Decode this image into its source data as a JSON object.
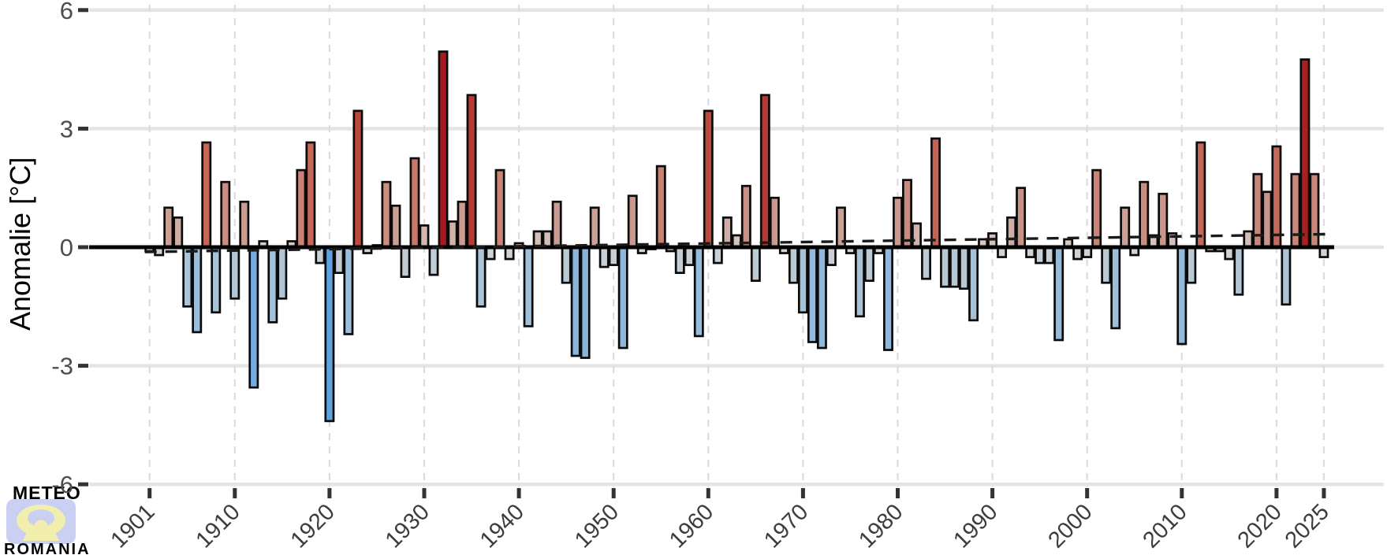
{
  "chart_data": {
    "type": "bar",
    "title": "",
    "xlabel": "",
    "ylabel": "Anomalie [°C]",
    "start_year": 1901,
    "end_year": 2025,
    "values": [
      -0.1,
      -0.2,
      1.0,
      0.75,
      -1.5,
      -2.15,
      2.65,
      -1.65,
      1.65,
      -1.3,
      1.15,
      -3.55,
      0.15,
      -1.9,
      -1.3,
      0.15,
      1.95,
      2.65,
      -0.4,
      -4.4,
      -0.65,
      -2.2,
      3.45,
      -0.15,
      0.05,
      1.65,
      1.05,
      -0.75,
      2.25,
      0.55,
      -0.7,
      4.95,
      0.65,
      1.15,
      3.85,
      -1.5,
      -0.3,
      1.95,
      -0.3,
      0.1,
      -2.0,
      0.4,
      0.4,
      1.15,
      -0.9,
      -2.75,
      -2.8,
      1.0,
      -0.5,
      -0.45,
      -2.55,
      1.3,
      -0.15,
      -0.05,
      2.05,
      -0.1,
      -0.65,
      -0.45,
      -2.25,
      3.45,
      -0.4,
      0.75,
      0.3,
      1.55,
      -0.85,
      3.85,
      1.25,
      -0.15,
      -0.9,
      -1.65,
      -2.4,
      -2.55,
      -0.45,
      1.0,
      -0.15,
      -1.75,
      -0.85,
      -0.15,
      -2.6,
      1.25,
      1.7,
      0.6,
      -0.8,
      2.75,
      -1.0,
      -1.0,
      -1.05,
      -1.85,
      0.2,
      0.35,
      -0.25,
      0.75,
      1.5,
      -0.25,
      -0.4,
      -0.4,
      -2.35,
      0.2,
      -0.3,
      -0.25,
      1.95,
      -0.9,
      -2.05,
      1.0,
      -0.2,
      1.65,
      0.3,
      1.35,
      0.35,
      -2.45,
      -0.9,
      2.65,
      -0.1,
      -0.1,
      -0.3,
      -1.2,
      0.4,
      1.85,
      1.4,
      2.55,
      -1.45,
      1.85,
      4.75,
      1.85,
      -0.25
    ],
    "y_ticks": [
      -6,
      -3,
      0,
      3,
      6
    ],
    "y_tick_labels": [
      "-6",
      "-3",
      "0",
      "3",
      "6"
    ],
    "x_tick_years": [
      1901,
      1910,
      1920,
      1930,
      1940,
      1950,
      1960,
      1970,
      1980,
      1990,
      2000,
      2010,
      2020,
      2025
    ],
    "x_tick_labels": [
      "1901",
      "1910",
      "1920",
      "1930",
      "1940",
      "1950",
      "1960",
      "1970",
      "1980",
      "1990",
      "2000",
      "2010",
      "2020",
      "2025"
    ],
    "ylim": [
      -6.3,
      6.3
    ],
    "grid": "horizontal solid at ticks, vertical dashed at labeled years",
    "legend": "none",
    "trend": {
      "style": "dashed",
      "start_year": 1901,
      "start_value": -0.12,
      "end_year": 2025,
      "end_value": 0.33
    }
  },
  "colors": {
    "background": "#ffffff",
    "grid_line": "#e4e4e4",
    "vertical_grid": "#dcdcdc",
    "axis_text": "#4d4d4d",
    "x_axis_text": "#3c3c3c",
    "bar_outline": "#0a0a0a",
    "zero_line": "#000000",
    "trend_line": "#1a1a1a",
    "palette_positive": [
      "#d9d2ce",
      "#cba196",
      "#c98273",
      "#bf5949",
      "#b33530",
      "#a6181d"
    ],
    "palette_negative": [
      "#d6d7d7",
      "#b7c8d5",
      "#9fc0da",
      "#82b2dd",
      "#69a7e0",
      "#509adf"
    ],
    "logo_yellow": "#f0eb9e",
    "logo_lavender": "#cad0f2",
    "logo_purple": "#7565cc"
  },
  "logo": {
    "line1": "METEO",
    "line2": "ROMANIA"
  }
}
